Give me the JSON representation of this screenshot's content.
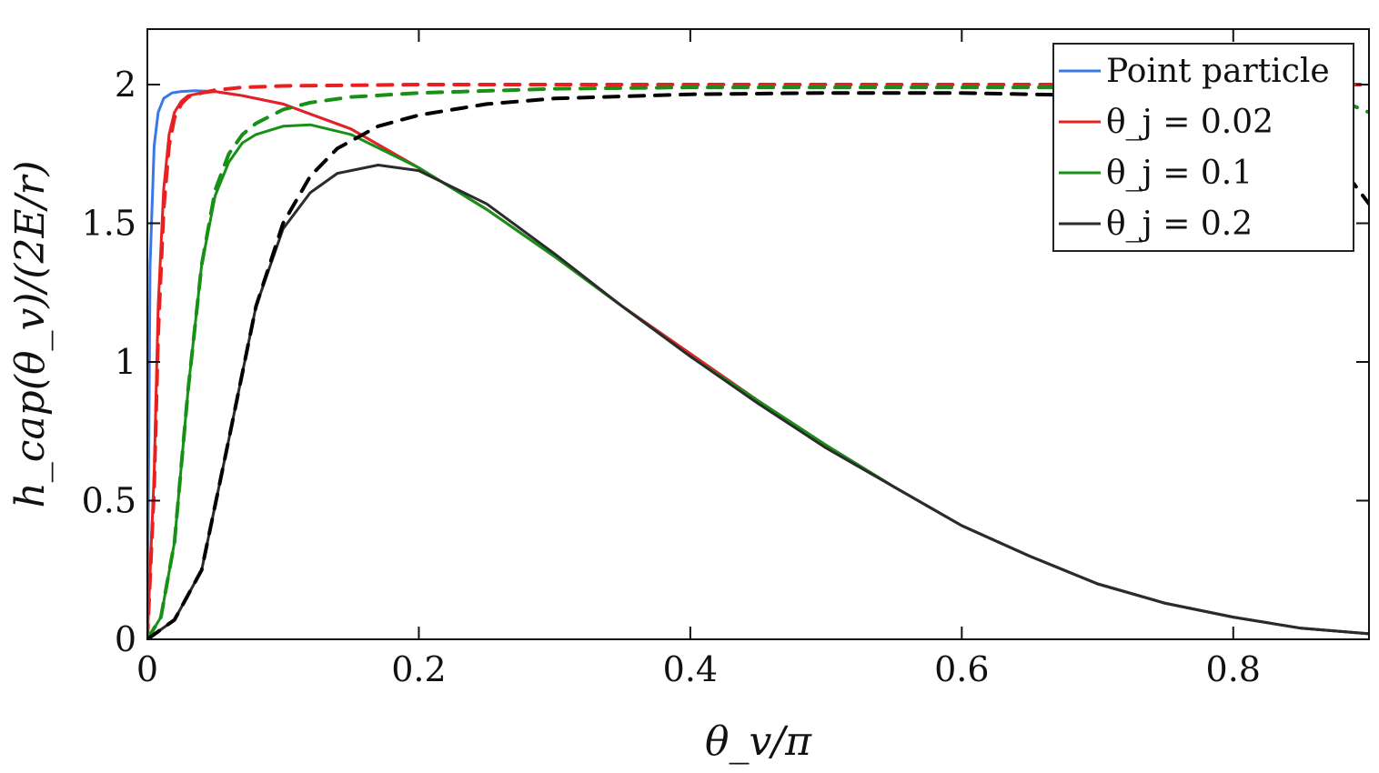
{
  "chart_data": {
    "type": "line",
    "xlabel": "θ_v/π",
    "ylabel": "h_cap(θ_v)/(2E/r)",
    "xlim": [
      0,
      0.9
    ],
    "ylim": [
      0,
      2.2
    ],
    "x_ticks": [
      "0",
      "0.2",
      "0.4",
      "0.6",
      "0.8"
    ],
    "x_tick_values": [
      0,
      0.2,
      0.4,
      0.6,
      0.8
    ],
    "y_ticks": [
      "0",
      "0.5",
      "1",
      "1.5",
      "2"
    ],
    "y_tick_values": [
      0,
      0.5,
      1,
      1.5,
      2
    ],
    "grid": false,
    "legend_position": "top-right",
    "series": [
      {
        "name": "Point particle",
        "color": "#3b78e7",
        "style": "solid",
        "x": [
          0,
          0.002,
          0.005,
          0.008,
          0.012,
          0.018,
          0.025,
          0.035,
          0.05,
          0.07,
          0.1,
          0.15,
          0.2,
          0.25,
          0.3,
          0.35,
          0.4,
          0.45,
          0.5,
          0.55,
          0.6,
          0.65,
          0.7,
          0.75,
          0.8,
          0.85,
          0.9
        ],
        "y": [
          0,
          1.35,
          1.78,
          1.9,
          1.95,
          1.97,
          1.975,
          1.978,
          1.975,
          1.96,
          1.93,
          1.84,
          1.7,
          1.55,
          1.38,
          1.2,
          1.03,
          0.86,
          0.7,
          0.55,
          0.41,
          0.3,
          0.2,
          0.13,
          0.08,
          0.04,
          0.02
        ]
      },
      {
        "name": "θ_j = 0.02",
        "color": "#e82020",
        "style": "solid",
        "x": [
          0,
          0.005,
          0.008,
          0.012,
          0.016,
          0.02,
          0.025,
          0.03,
          0.04,
          0.05,
          0.07,
          0.1,
          0.15,
          0.2,
          0.25,
          0.3,
          0.35,
          0.4,
          0.45,
          0.5,
          0.55,
          0.6,
          0.65,
          0.7,
          0.75,
          0.8,
          0.85,
          0.9
        ],
        "y": [
          0,
          0.6,
          1.2,
          1.62,
          1.82,
          1.9,
          1.94,
          1.96,
          1.97,
          1.975,
          1.96,
          1.93,
          1.84,
          1.7,
          1.55,
          1.38,
          1.2,
          1.03,
          0.86,
          0.7,
          0.55,
          0.41,
          0.3,
          0.2,
          0.13,
          0.08,
          0.04,
          0.02
        ]
      },
      {
        "name": "θ_j = 0.1",
        "color": "#169116",
        "style": "solid",
        "x": [
          0,
          0.01,
          0.02,
          0.03,
          0.04,
          0.05,
          0.06,
          0.07,
          0.08,
          0.1,
          0.12,
          0.15,
          0.2,
          0.25,
          0.3,
          0.35,
          0.4,
          0.45,
          0.5,
          0.55,
          0.6,
          0.65,
          0.7,
          0.75,
          0.8,
          0.85,
          0.9
        ],
        "y": [
          0,
          0.08,
          0.35,
          0.9,
          1.35,
          1.6,
          1.72,
          1.79,
          1.82,
          1.85,
          1.855,
          1.82,
          1.7,
          1.55,
          1.38,
          1.2,
          1.02,
          0.86,
          0.7,
          0.55,
          0.41,
          0.3,
          0.2,
          0.13,
          0.08,
          0.04,
          0.02
        ]
      },
      {
        "name": "θ_j = 0.2",
        "color": "#2b2b2b",
        "style": "solid",
        "x": [
          0,
          0.02,
          0.04,
          0.06,
          0.08,
          0.1,
          0.12,
          0.14,
          0.17,
          0.2,
          0.25,
          0.3,
          0.35,
          0.4,
          0.45,
          0.5,
          0.55,
          0.6,
          0.65,
          0.7,
          0.75,
          0.8,
          0.85,
          0.9
        ],
        "y": [
          0,
          0.07,
          0.25,
          0.72,
          1.2,
          1.48,
          1.61,
          1.68,
          1.71,
          1.69,
          1.57,
          1.39,
          1.2,
          1.02,
          0.85,
          0.69,
          0.55,
          0.41,
          0.3,
          0.2,
          0.13,
          0.08,
          0.04,
          0.02
        ]
      },
      {
        "name": "",
        "color": "#e82020",
        "style": "dashed",
        "x": [
          0,
          0.005,
          0.008,
          0.012,
          0.016,
          0.02,
          0.025,
          0.03,
          0.04,
          0.05,
          0.07,
          0.1,
          0.2,
          0.3,
          0.4,
          0.5,
          0.6,
          0.7,
          0.8,
          0.9
        ],
        "y": [
          0,
          0.55,
          1.1,
          1.55,
          1.78,
          1.88,
          1.93,
          1.955,
          1.97,
          1.98,
          1.99,
          1.995,
          2.0,
          2.0,
          2.0,
          2.0,
          2.0,
          2.0,
          2.0,
          2.0
        ]
      },
      {
        "name": "",
        "color": "#169116",
        "style": "dashed",
        "x": [
          0,
          0.01,
          0.02,
          0.03,
          0.04,
          0.05,
          0.06,
          0.07,
          0.08,
          0.1,
          0.12,
          0.15,
          0.2,
          0.3,
          0.4,
          0.5,
          0.6,
          0.7,
          0.75,
          0.8,
          0.85,
          0.88,
          0.9
        ],
        "y": [
          0,
          0.08,
          0.35,
          0.9,
          1.35,
          1.62,
          1.75,
          1.82,
          1.86,
          1.91,
          1.935,
          1.955,
          1.97,
          1.985,
          1.99,
          1.99,
          1.99,
          1.99,
          1.985,
          1.98,
          1.96,
          1.94,
          1.9
        ]
      },
      {
        "name": "",
        "color": "#000000",
        "style": "dashed",
        "x": [
          0,
          0.02,
          0.04,
          0.06,
          0.08,
          0.1,
          0.12,
          0.14,
          0.17,
          0.2,
          0.25,
          0.3,
          0.4,
          0.5,
          0.6,
          0.7,
          0.75,
          0.8,
          0.85,
          0.88,
          0.9
        ],
        "y": [
          0,
          0.07,
          0.25,
          0.72,
          1.2,
          1.5,
          1.67,
          1.77,
          1.85,
          1.89,
          1.93,
          1.95,
          1.965,
          1.97,
          1.97,
          1.96,
          1.945,
          1.91,
          1.82,
          1.7,
          1.57
        ]
      }
    ]
  }
}
